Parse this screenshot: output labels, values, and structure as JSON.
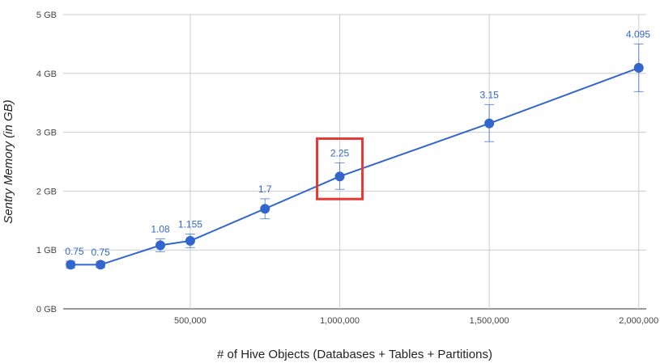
{
  "chart_data": {
    "type": "line",
    "xlabel": "# of Hive Objects (Databases + Tables + Partitions)",
    "ylabel": "Sentry Memory (in GB)",
    "xlim": [
      75000,
      2025000
    ],
    "ylim": [
      0,
      5
    ],
    "x_ticks": [
      {
        "value": 500000,
        "label": "500,000"
      },
      {
        "value": 1000000,
        "label": "1,000,000"
      },
      {
        "value": 1500000,
        "label": "1,500,000"
      },
      {
        "value": 2000000,
        "label": "2,000,000"
      }
    ],
    "y_ticks": [
      {
        "value": 0,
        "label": "0 GB"
      },
      {
        "value": 1,
        "label": "1 GB"
      },
      {
        "value": 2,
        "label": "2 GB"
      },
      {
        "value": 3,
        "label": "3 GB"
      },
      {
        "value": 4,
        "label": "4 GB"
      },
      {
        "value": 5,
        "label": "5 GB"
      }
    ],
    "grid": true,
    "series": [
      {
        "color": "#3366cc",
        "points": [
          {
            "x": 100000,
            "y": 0.75,
            "label": "0.75",
            "err_low": 0.69,
            "err_high": 0.81
          },
          {
            "x": 200000,
            "y": 0.75,
            "label": "0.75",
            "err_low": 0.7,
            "err_high": 0.8
          },
          {
            "x": 400000,
            "y": 1.08,
            "label": "1.08",
            "err_low": 0.97,
            "err_high": 1.19
          },
          {
            "x": 500000,
            "y": 1.155,
            "label": "1.155",
            "err_low": 1.04,
            "err_high": 1.27
          },
          {
            "x": 750000,
            "y": 1.7,
            "label": "1.7",
            "err_low": 1.53,
            "err_high": 1.87
          },
          {
            "x": 1000000,
            "y": 2.25,
            "label": "2.25",
            "err_low": 2.03,
            "err_high": 2.48
          },
          {
            "x": 1500000,
            "y": 3.15,
            "label": "3.15",
            "err_low": 2.84,
            "err_high": 3.47
          },
          {
            "x": 2000000,
            "y": 4.095,
            "label": "4.095",
            "err_low": 3.69,
            "err_high": 4.5
          }
        ]
      }
    ],
    "highlight": {
      "x": 1000000,
      "color": "#e53935"
    }
  }
}
